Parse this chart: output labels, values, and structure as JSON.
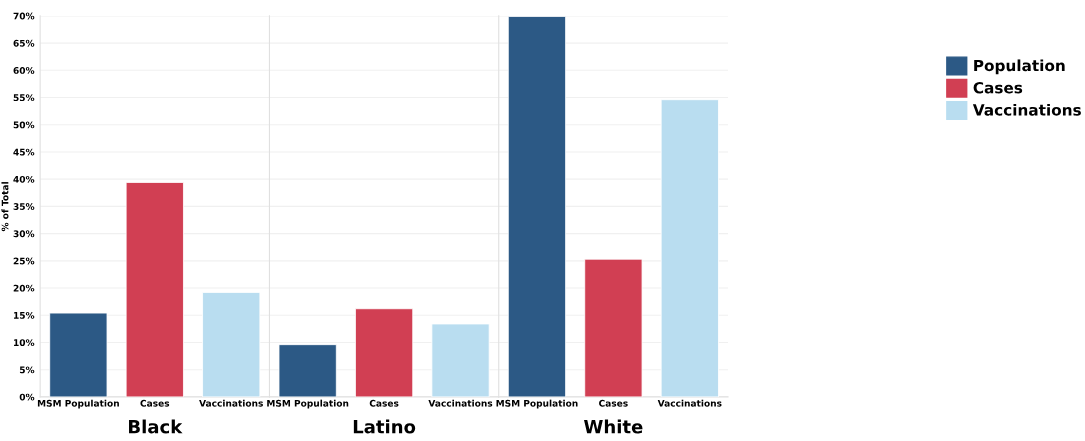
{
  "chart_data": [
    {
      "type": "bar",
      "xlabel": "Black",
      "ylabel": "% of Total",
      "categories": [
        "MSM Population",
        "Cases",
        "Vaccinations"
      ],
      "series": [
        {
          "name": "Population",
          "color": "#2c5985",
          "values": [
            15.4,
            null,
            null
          ]
        },
        {
          "name": "Cases",
          "color": "#d13f53",
          "values": [
            null,
            39.4,
            null
          ]
        },
        {
          "name": "Vaccinations",
          "color": "#b9ddf0",
          "values": [
            null,
            null,
            19.2
          ]
        }
      ],
      "ylim": [
        0,
        70
      ],
      "yticks": [
        {
          "value": 0,
          "label": "0%"
        },
        {
          "value": 5,
          "label": "5%"
        },
        {
          "value": 10,
          "label": "10%"
        },
        {
          "value": 15,
          "label": "15%"
        },
        {
          "value": 20,
          "label": "20%"
        },
        {
          "value": 25,
          "label": "25%"
        },
        {
          "value": 30,
          "label": "30%"
        },
        {
          "value": 35,
          "label": "35%"
        },
        {
          "value": 40,
          "label": "40%"
        },
        {
          "value": 45,
          "label": "45%"
        },
        {
          "value": 50,
          "label": "50%"
        },
        {
          "value": 55,
          "label": "55%"
        },
        {
          "value": 60,
          "label": "60%"
        },
        {
          "value": 65,
          "label": "65%"
        },
        {
          "value": 70,
          "label": "70%"
        }
      ],
      "grid": "y",
      "legend": "right"
    },
    {
      "type": "bar",
      "xlabel": "Latino",
      "categories": [
        "MSM Population",
        "Cases",
        "Vaccinations"
      ],
      "series": [
        {
          "color": "#2c5985",
          "values": [
            9.6,
            null,
            null
          ]
        },
        {
          "color": "#d13f53",
          "values": [
            null,
            16.2,
            null
          ]
        },
        {
          "color": "#b9ddf0",
          "values": [
            null,
            null,
            13.4
          ]
        }
      ],
      "ylim": [
        0,
        70
      ],
      "tick_labels": "x",
      "grid": "y"
    },
    {
      "type": "bar",
      "xlabel": "White",
      "categories": [
        "MSM Population",
        "Cases",
        "Vaccinations"
      ],
      "series": [
        {
          "color": "#2c5985",
          "values": [
            69.9,
            null,
            null
          ]
        },
        {
          "color": "#d13f53",
          "values": [
            null,
            25.3,
            null
          ]
        },
        {
          "color": "#b9ddf0",
          "values": [
            null,
            null,
            54.6
          ]
        }
      ],
      "ylim": [
        0,
        70
      ],
      "tick_labels": "x",
      "grid": "y"
    }
  ]
}
